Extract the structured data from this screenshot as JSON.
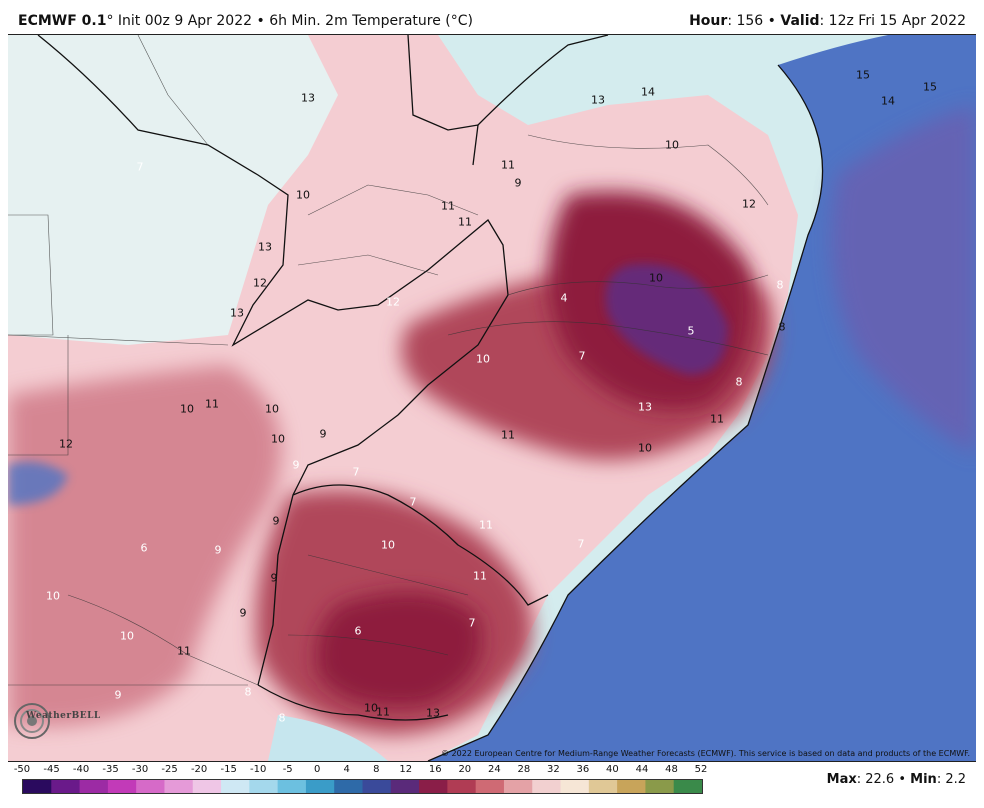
{
  "header": {
    "model": "ECMWF 0.1",
    "degree": "°",
    "init": " Init 00z 9 Apr 2022",
    "separator": " • ",
    "product": "6h Min. 2m Temperature (°C)",
    "hour_label": "Hour",
    "hour_value": ": 156",
    "valid_label": "Valid",
    "valid_value": ": 12z Fri 15 Apr 2022"
  },
  "map": {
    "copyright": "© 2022 European Centre for Medium-Range Weather Forecasts (ECMWF). This service is based on data and products of the ECMWF.",
    "logo_text": "WeatherBELL",
    "colors": {
      "ocean": "#4f74c4",
      "warm": "#c45a6c",
      "hot": "#8e1c3c",
      "cold_core": "#5c2e88",
      "mild": "#f4cdd2",
      "cool": "#d4ecee"
    },
    "temperature_labels": [
      "13",
      "14",
      "15",
      "14",
      "15",
      "13",
      "11",
      "9",
      "10",
      "7",
      "10",
      "11",
      "11",
      "12",
      "13",
      "12",
      "12",
      "10",
      "4",
      "8",
      "13",
      "5",
      "8",
      "7",
      "10",
      "8",
      "13",
      "11",
      "10",
      "11",
      "10",
      "10",
      "9",
      "11",
      "12",
      "10",
      "9",
      "7",
      "7",
      "11",
      "7",
      "10",
      "9",
      "6",
      "9",
      "11",
      "9",
      "10",
      "6",
      "7",
      "9",
      "10",
      "11",
      "8",
      "9",
      "8",
      "10",
      "11",
      "13"
    ]
  },
  "colorbar": {
    "ticks": [
      "-50",
      "-45",
      "-40",
      "-35",
      "-30",
      "-25",
      "-20",
      "-15",
      "-10",
      "-5",
      "0",
      "4",
      "8",
      "12",
      "16",
      "20",
      "24",
      "28",
      "32",
      "36",
      "40",
      "44",
      "48",
      "52"
    ],
    "colors": [
      "#2a0a5e",
      "#6a1a8a",
      "#9c2ba4",
      "#c23ab8",
      "#d66ac8",
      "#e59ad8",
      "#efc6e6",
      "#cfe8f4",
      "#a4d8ec",
      "#6cc0e0",
      "#3a9cc8",
      "#2e6aa8",
      "#3a4a9a",
      "#5a2a7a",
      "#8a1e48",
      "#b03c54",
      "#cf6a74",
      "#e4a2a6",
      "#f2d0d0",
      "#f6e6d6",
      "#e0c896",
      "#c8a45a",
      "#8a9a4a",
      "#3a8a4a"
    ]
  },
  "stats": {
    "max_label": "Max",
    "max_value": ": 22.6",
    "sep": " • ",
    "min_label": "Min",
    "min_value": ": 2.2"
  }
}
